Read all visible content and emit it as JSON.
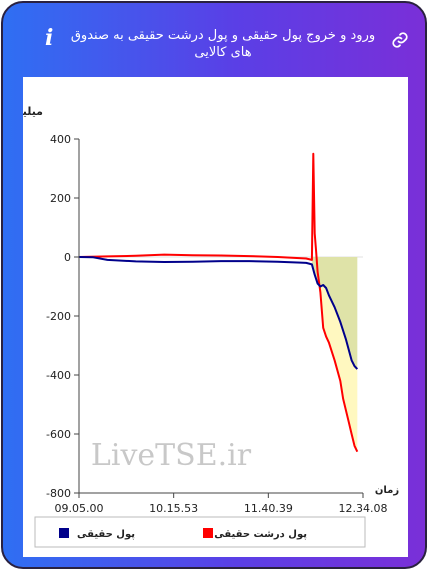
{
  "header": {
    "title": "ورود و خروج پول حقیقی و پول درشت حقیقی به صندوق های کالایی",
    "info_icon": "info-icon",
    "link_icon": "link-icon"
  },
  "chart_data": {
    "type": "line",
    "ylabel": "میلیارد تومان",
    "xlabel": "زمان",
    "ylim": [
      -800,
      400
    ],
    "yticks": [
      400,
      200,
      0,
      -200,
      -400,
      -600,
      -800
    ],
    "xticks": [
      "09.05.00",
      "10.15.53",
      "11.40.39",
      "12.34.08"
    ],
    "watermark": "LiveTSE.ir",
    "colors": {
      "real_money": "#00008b",
      "big_real_money": "#ff0000",
      "fill_light": "#fff8c0",
      "fill_dark": "#dfe3a8"
    },
    "series": [
      {
        "name": "پول حقیقی",
        "color": "#00008b",
        "points": [
          [
            0,
            0
          ],
          [
            0.05,
            -1
          ],
          [
            0.1,
            -10
          ],
          [
            0.2,
            -15
          ],
          [
            0.3,
            -17
          ],
          [
            0.4,
            -16
          ],
          [
            0.5,
            -14
          ],
          [
            0.6,
            -14
          ],
          [
            0.7,
            -16
          ],
          [
            0.78,
            -19
          ],
          [
            0.8,
            -20
          ],
          [
            0.82,
            -25
          ],
          [
            0.83,
            -60
          ],
          [
            0.84,
            -90
          ],
          [
            0.85,
            -100
          ],
          [
            0.86,
            -95
          ],
          [
            0.87,
            -105
          ],
          [
            0.88,
            -130
          ],
          [
            0.9,
            -170
          ],
          [
            0.92,
            -220
          ],
          [
            0.94,
            -280
          ],
          [
            0.96,
            -350
          ],
          [
            0.97,
            -370
          ],
          [
            0.98,
            -380
          ]
        ]
      },
      {
        "name": "پول درشت حقیقی",
        "color": "#ff0000",
        "points": [
          [
            0,
            0
          ],
          [
            0.1,
            2
          ],
          [
            0.2,
            4
          ],
          [
            0.3,
            8
          ],
          [
            0.4,
            6
          ],
          [
            0.5,
            5
          ],
          [
            0.6,
            3
          ],
          [
            0.7,
            0
          ],
          [
            0.8,
            -5
          ],
          [
            0.82,
            -10
          ],
          [
            0.825,
            350
          ],
          [
            0.83,
            80
          ],
          [
            0.835,
            20
          ],
          [
            0.84,
            -50
          ],
          [
            0.85,
            -120
          ],
          [
            0.86,
            -240
          ],
          [
            0.87,
            -270
          ],
          [
            0.88,
            -290
          ],
          [
            0.9,
            -350
          ],
          [
            0.92,
            -420
          ],
          [
            0.93,
            -480
          ],
          [
            0.95,
            -560
          ],
          [
            0.96,
            -600
          ],
          [
            0.97,
            -640
          ],
          [
            0.98,
            -660
          ]
        ]
      }
    ]
  }
}
